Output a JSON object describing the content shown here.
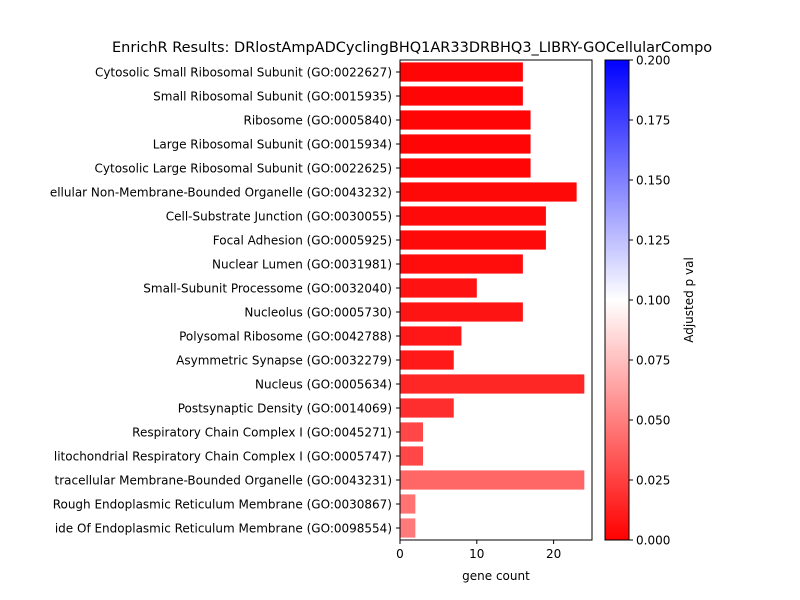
{
  "chart_data": {
    "type": "bar",
    "orientation": "horizontal",
    "title": "EnrichR Results: DRlostAmpADCyclingBHQ1AR33DRBHQ3_LIBRY-GOCellularCompo",
    "xlabel": "gene count",
    "ylabel": "",
    "xlim": [
      0,
      25
    ],
    "x_ticks": [
      "0",
      "10",
      "20"
    ],
    "grid": false,
    "categories": [
      "Cytosolic Small Ribosomal Subunit (GO:0022627)",
      "Small Ribosomal Subunit (GO:0015935)",
      "Ribosome (GO:0005840)",
      "Large Ribosomal Subunit (GO:0015934)",
      "Cytosolic Large Ribosomal Subunit (GO:0022625)",
      "ellular Non-Membrane-Bounded Organelle (GO:0043232)",
      "Cell-Substrate Junction (GO:0030055)",
      "Focal Adhesion (GO:0005925)",
      "Nuclear Lumen (GO:0031981)",
      "Small-Subunit Processome (GO:0032040)",
      "Nucleolus (GO:0005730)",
      "Polysomal Ribosome (GO:0042788)",
      "Asymmetric Synapse (GO:0032279)",
      "Nucleus (GO:0005634)",
      "Postsynaptic Density (GO:0014069)",
      "Respiratory Chain Complex I (GO:0045271)",
      "litochondrial Respiratory Chain Complex I (GO:0005747)",
      "tracellular Membrane-Bounded Organelle (GO:0043231)",
      "Rough Endoplasmic Reticulum Membrane (GO:0030867)",
      "ide Of Endoplasmic Reticulum Membrane (GO:0098554)"
    ],
    "values": [
      16,
      16,
      17,
      17,
      17,
      23,
      19,
      19,
      16,
      10,
      16,
      8,
      7,
      24,
      7,
      3,
      3,
      24,
      2,
      2
    ],
    "adjusted_p": [
      0.002,
      0.002,
      0.002,
      0.002,
      0.002,
      0.003,
      0.004,
      0.004,
      0.005,
      0.007,
      0.008,
      0.009,
      0.01,
      0.015,
      0.018,
      0.028,
      0.028,
      0.04,
      0.045,
      0.048
    ],
    "colorbar": {
      "label": "Adjusted p val",
      "range": [
        0,
        0.2
      ],
      "ticks": [
        "0.000",
        "0.025",
        "0.050",
        "0.075",
        "0.100",
        "0.125",
        "0.150",
        "0.175",
        "0.200"
      ],
      "colors": {
        "low": "#ff0000",
        "mid": "#ffffff",
        "high": "#0000ff"
      }
    }
  }
}
